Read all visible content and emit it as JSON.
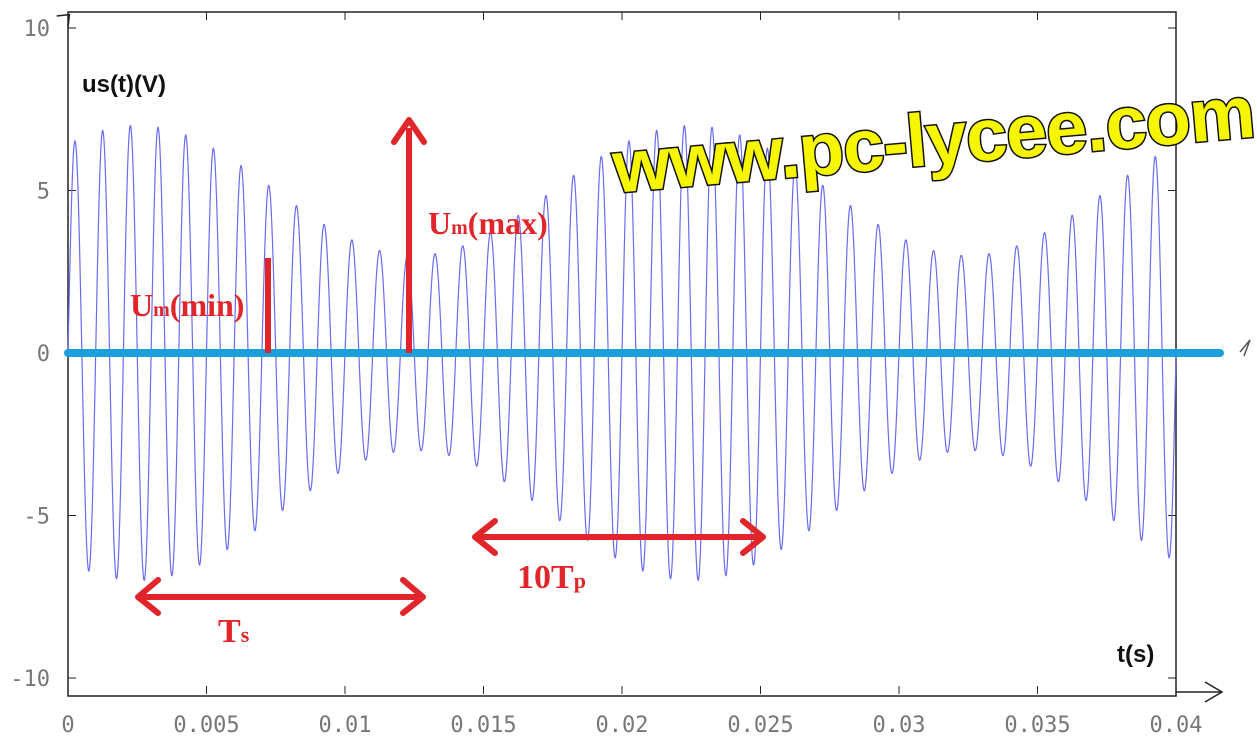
{
  "watermark": "www.pc-lycee.com",
  "colors": {
    "signal": "#6b6bf0",
    "zero_line": "#1aa0dc",
    "annotation": "#e0262b",
    "watermark_fill": "#f6f600",
    "watermark_stroke": "#111111"
  },
  "chart_data": {
    "type": "line",
    "title": "",
    "xlabel": "t(s)",
    "ylabel": "us(t)(V)",
    "xlim": [
      0,
      0.04
    ],
    "ylim": [
      -10,
      10
    ],
    "x_ticks": [
      "0",
      "0.005",
      "0.01",
      "0.015",
      "0.02",
      "0.025",
      "0.03",
      "0.035",
      "0.04"
    ],
    "y_ticks": [
      "10",
      "5",
      "0",
      "-5",
      "-10"
    ],
    "grid": false,
    "series": [
      {
        "function": "amplitude-modulated sine",
        "amplitude_max_V": 7,
        "amplitude_min_V": 3,
        "carrier_period_s": 0.001,
        "modulation_period_s": 0.02,
        "phase_at_zero_s": 0.00025,
        "envelope_max_at_s": 0.0025
      },
      {
        "function": "zero line",
        "y": 0
      }
    ],
    "annotations": {
      "um_min": {
        "label_main": "U",
        "label_sub": "m",
        "label_rest": "(min)"
      },
      "um_max": {
        "label_main": "U",
        "label_sub": "m",
        "label_rest": "(max)"
      },
      "ts": {
        "label_main": "T",
        "label_sub": "s"
      },
      "tp": {
        "label_prefix": "10T",
        "label_sub": "p"
      }
    }
  }
}
